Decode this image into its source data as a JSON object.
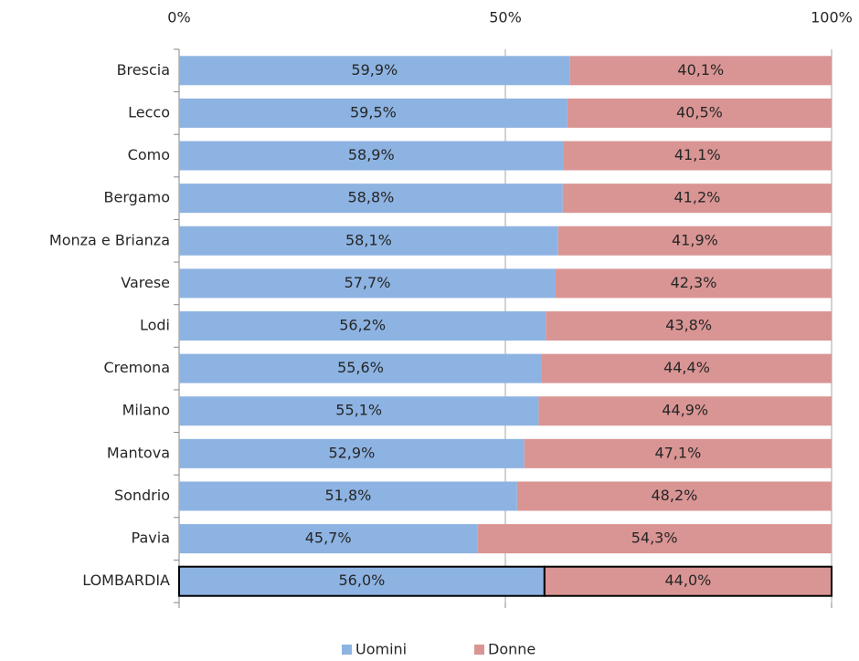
{
  "chart_data": {
    "type": "stacked-bar-horizontal",
    "categories": [
      "Brescia",
      "Lecco",
      "Como",
      "Bergamo",
      "Monza e Brianza",
      "Varese",
      "Lodi",
      "Cremona",
      "Milano",
      "Mantova",
      "Sondrio",
      "Pavia",
      "LOMBARDIA"
    ],
    "series": [
      {
        "name": "Uomini",
        "color": "#8db3e2",
        "values": [
          59.9,
          59.5,
          58.9,
          58.8,
          58.1,
          57.7,
          56.2,
          55.6,
          55.1,
          52.9,
          51.8,
          45.7,
          56.0
        ],
        "value_labels": [
          "59,9%",
          "59,5%",
          "58,9%",
          "58,8%",
          "58,1%",
          "57,7%",
          "56,2%",
          "55,6%",
          "55,1%",
          "52,9%",
          "51,8%",
          "45,7%",
          "56,0%"
        ]
      },
      {
        "name": "Donne",
        "color": "#d99594",
        "values": [
          40.1,
          40.5,
          41.1,
          41.2,
          41.9,
          42.3,
          43.8,
          44.4,
          44.9,
          47.1,
          48.2,
          54.3,
          44.0
        ],
        "value_labels": [
          "40,1%",
          "40,5%",
          "41,1%",
          "41,2%",
          "41,9%",
          "42,3%",
          "43,8%",
          "44,4%",
          "44,9%",
          "47,1%",
          "48,2%",
          "54,3%",
          "44,0%"
        ]
      }
    ],
    "xlim": [
      0,
      100
    ],
    "xticks": [
      {
        "value": 0,
        "label": "0%"
      },
      {
        "value": 50,
        "label": "50%"
      },
      {
        "value": 100,
        "label": "100%"
      }
    ],
    "grid": true,
    "legend": "bottom",
    "highlight_category_index": 12
  }
}
